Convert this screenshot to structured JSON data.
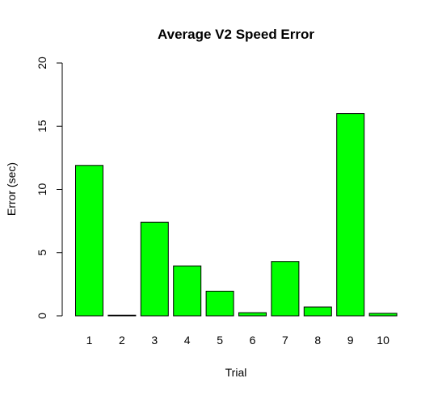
{
  "chart_data": {
    "type": "bar",
    "title": "Average V2 Speed Error",
    "xlabel": "Trial",
    "ylabel": "Error (sec)",
    "categories": [
      "1",
      "2",
      "3",
      "4",
      "5",
      "6",
      "7",
      "8",
      "9",
      "10"
    ],
    "values": [
      11.9,
      0.05,
      7.4,
      3.95,
      1.95,
      0.25,
      4.3,
      0.7,
      16.0,
      0.2
    ],
    "ylim": [
      0,
      20
    ],
    "yticks": [
      0,
      5,
      10,
      15,
      20
    ],
    "grid": false,
    "legend": "none",
    "bar_color": "#00ff00",
    "bar_edge_color": "#000000"
  }
}
